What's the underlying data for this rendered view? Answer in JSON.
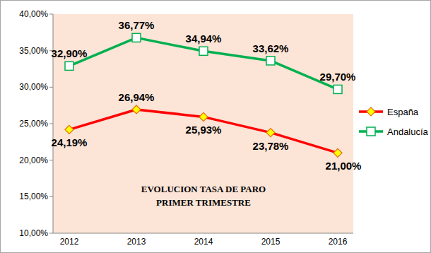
{
  "chart_data": {
    "type": "line",
    "title": "EVOLUCION TASA DE PARO",
    "subtitle": "PRIMER TRIMESTRE",
    "categories": [
      "2012",
      "2013",
      "2014",
      "2015",
      "2016"
    ],
    "series": [
      {
        "name": "España",
        "color": "#ff0000",
        "marker": "diamond",
        "line_style": "solid",
        "values": [
          24.19,
          26.94,
          25.93,
          23.78,
          21.0
        ],
        "value_labels": [
          "24,19%",
          "26,94%",
          "25,93%",
          "23,78%",
          "21,00%"
        ]
      },
      {
        "name": "Andalucía",
        "color": "#00b050",
        "marker": "square",
        "line_style": "solid",
        "values": [
          32.9,
          36.77,
          34.94,
          33.62,
          29.7
        ],
        "value_labels": [
          "32,90%",
          "36,77%",
          "34,94%",
          "33,62%",
          "29,70%"
        ]
      }
    ],
    "ylim": [
      10,
      40
    ],
    "yticks": [
      {
        "value": 10,
        "label": "10,00%"
      },
      {
        "value": 15,
        "label": "15,00%"
      },
      {
        "value": 20,
        "label": "20,00%"
      },
      {
        "value": 25,
        "label": "25,00%"
      },
      {
        "value": 30,
        "label": "30,00%"
      },
      {
        "value": 35,
        "label": "35,00%"
      },
      {
        "value": 40,
        "label": "40,00%"
      }
    ],
    "grid": false,
    "legend": "right",
    "data_labels": true
  }
}
